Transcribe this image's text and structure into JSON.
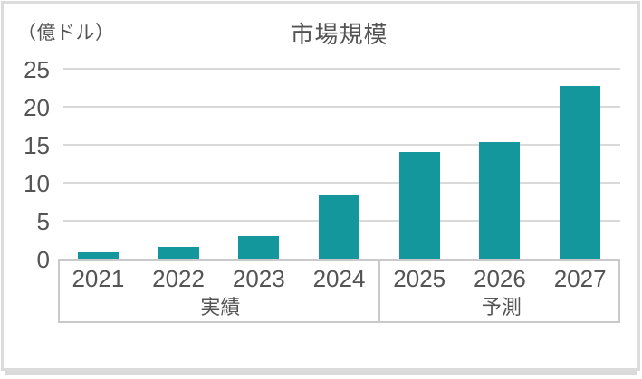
{
  "header": {
    "title": "市場規模",
    "unit_label": "（億ドル）"
  },
  "chart_data": {
    "type": "bar",
    "title": "市場規模",
    "unit_label": "（億ドル）",
    "ylabel": "（億ドル）",
    "xlabel": "",
    "categories": [
      "2021",
      "2022",
      "2023",
      "2024",
      "2025",
      "2026",
      "2027"
    ],
    "values": [
      0.8,
      1.5,
      3.0,
      8.3,
      14.0,
      15.3,
      22.7
    ],
    "ylim": [
      0,
      25
    ],
    "yticks": [
      0,
      5,
      10,
      15,
      20,
      25
    ],
    "grid": true,
    "legend": false,
    "groups": [
      {
        "label": "実績",
        "span": 4
      },
      {
        "label": "予測",
        "span": 3
      }
    ]
  },
  "colors": {
    "bar": "#13969C",
    "text": "#545454",
    "grid": "#d9d9d9",
    "axis_box_border": "#c9c9c9",
    "card_border": "#dcdcdc",
    "background": "#ffffff"
  }
}
